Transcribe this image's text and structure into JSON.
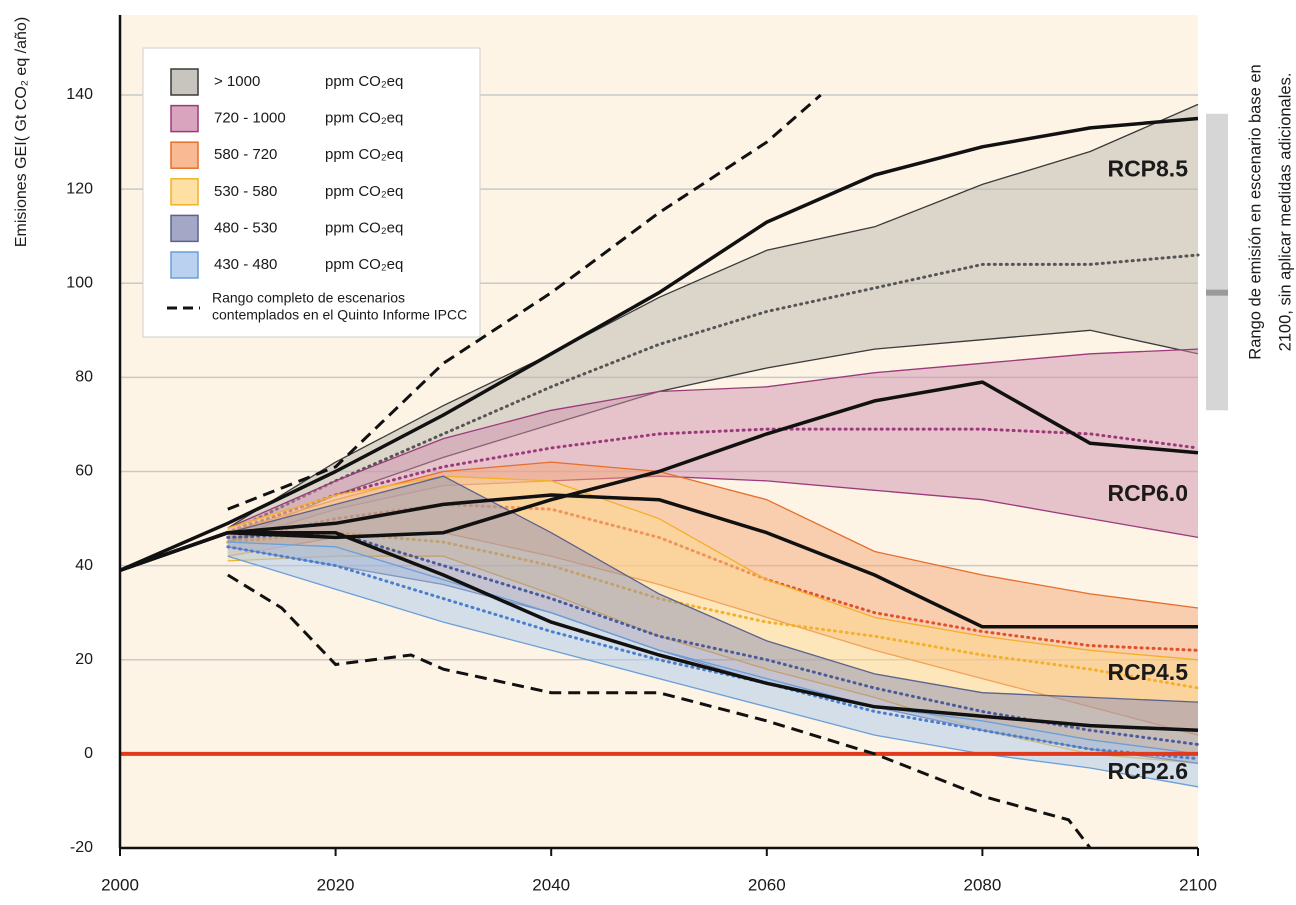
{
  "chart_data": {
    "type": "band",
    "y_label": "Emisiones GEI( Gt CO₂ eq /año)",
    "xlim": [
      2000,
      2100
    ],
    "xticks": [
      2000,
      2020,
      2040,
      2060,
      2080,
      2100
    ],
    "ylim": [
      -20,
      157
    ],
    "yticks": [
      -20,
      0,
      20,
      40,
      60,
      80,
      100,
      120,
      140
    ],
    "grid": true,
    "zero_line": {
      "value": 0,
      "color": "#e0391c"
    },
    "bands": [
      {
        "name": "> 1000",
        "unit": "ppm CO₂eq",
        "color": "#b9b6ae",
        "edge": "#3a3a3a",
        "median_color": "#555555",
        "x": [
          2010,
          2020,
          2030,
          2040,
          2050,
          2060,
          2070,
          2080,
          2090,
          2100
        ],
        "high": [
          48,
          62,
          74,
          85,
          97,
          107,
          112,
          121,
          128,
          138
        ],
        "low": [
          45,
          55,
          63,
          70,
          77,
          82,
          86,
          88,
          90,
          85
        ],
        "median": [
          47,
          58,
          68,
          78,
          87,
          94,
          99,
          104,
          104,
          106
        ]
      },
      {
        "name": "720 - 1000",
        "unit": "ppm CO₂eq",
        "color": "#cf8fae",
        "edge": "#9b3a7a",
        "median_color": "#9b3a7a",
        "x": [
          2010,
          2020,
          2030,
          2040,
          2050,
          2060,
          2070,
          2080,
          2090,
          2100
        ],
        "high": [
          48,
          58,
          67,
          73,
          77,
          78,
          81,
          83,
          85,
          86
        ],
        "low": [
          45,
          52,
          57,
          58,
          59,
          58,
          56,
          54,
          50,
          46
        ],
        "median": [
          47,
          55,
          61,
          65,
          68,
          69,
          69,
          69,
          68,
          65
        ]
      },
      {
        "name": "580 - 720",
        "unit": "ppm CO₂eq",
        "color": "#f6a878",
        "edge": "#e66e2a",
        "median_color": "#e0502a",
        "x": [
          2010,
          2020,
          2030,
          2040,
          2050,
          2060,
          2070,
          2080,
          2090,
          2100
        ],
        "high": [
          47,
          54,
          60,
          62,
          60,
          54,
          43,
          38,
          34,
          31
        ],
        "low": [
          42,
          46,
          47,
          42,
          36,
          29,
          22,
          16,
          10,
          4
        ],
        "median": [
          45,
          50,
          53,
          52,
          46,
          37,
          30,
          26,
          23,
          22
        ]
      },
      {
        "name": "530 - 580",
        "unit": "ppm CO₂eq",
        "color": "#fdd88b",
        "edge": "#f4b02a",
        "median_color": "#f4b02a",
        "x": [
          2010,
          2020,
          2030,
          2040,
          2050,
          2060,
          2070,
          2080,
          2090,
          2100
        ],
        "high": [
          48,
          55,
          59,
          58,
          50,
          37,
          29,
          25,
          22,
          20
        ],
        "low": [
          41,
          42,
          42,
          34,
          25,
          18,
          12,
          5,
          0,
          -2
        ],
        "median": [
          45,
          47,
          45,
          40,
          33,
          28,
          25,
          21,
          18,
          14
        ]
      },
      {
        "name": "480 - 530",
        "unit": "ppm CO₂eq",
        "color": "#8d92b8",
        "edge": "#5c628f",
        "median_color": "#4a5a9a",
        "x": [
          2010,
          2020,
          2030,
          2040,
          2050,
          2060,
          2070,
          2080,
          2090,
          2100
        ],
        "high": [
          47,
          53,
          59,
          47,
          34,
          24,
          17,
          13,
          12,
          11
        ],
        "low": [
          44,
          40,
          36,
          30,
          22,
          15,
          10,
          5,
          1,
          -2
        ],
        "median": [
          46,
          47,
          40,
          33,
          25,
          20,
          14,
          9,
          5,
          2
        ]
      },
      {
        "name": "430 - 480",
        "unit": "ppm CO₂eq",
        "color": "#a9c7ec",
        "edge": "#6a9fda",
        "median_color": "#4a7fcf",
        "x": [
          2010,
          2020,
          2030,
          2040,
          2050,
          2060,
          2070,
          2080,
          2090,
          2100
        ],
        "high": [
          45,
          44,
          37,
          30,
          22,
          16,
          10,
          7,
          3,
          0
        ],
        "low": [
          42,
          35,
          28,
          22,
          16,
          10,
          4,
          0,
          -3,
          -7
        ],
        "median": [
          44,
          40,
          33,
          26,
          20,
          15,
          9,
          5,
          1,
          -1
        ]
      }
    ],
    "lines": [
      {
        "name": "RCP8.5",
        "x": [
          2000,
          2010,
          2020,
          2030,
          2040,
          2050,
          2060,
          2070,
          2080,
          2090,
          2100
        ],
        "values": [
          39,
          49,
          60,
          72,
          85,
          98,
          113,
          123,
          129,
          133,
          135
        ]
      },
      {
        "name": "RCP6.0",
        "x": [
          2000,
          2010,
          2020,
          2030,
          2040,
          2050,
          2060,
          2070,
          2080,
          2090,
          2100
        ],
        "values": [
          39,
          47,
          46,
          47,
          54,
          60,
          68,
          75,
          79,
          66,
          64
        ]
      },
      {
        "name": "RCP4.5",
        "x": [
          2000,
          2010,
          2020,
          2030,
          2040,
          2050,
          2060,
          2070,
          2080,
          2090,
          2100
        ],
        "values": [
          39,
          47,
          49,
          53,
          55,
          54,
          47,
          38,
          27,
          27,
          27
        ]
      },
      {
        "name": "RCP2.6",
        "x": [
          2000,
          2010,
          2020,
          2030,
          2040,
          2050,
          2060,
          2070,
          2080,
          2090,
          2100
        ],
        "values": [
          39,
          47,
          47,
          38,
          28,
          21,
          15,
          10,
          8,
          6,
          5
        ]
      }
    ],
    "scenario_range": {
      "name_lines": [
        "Rango completo de escenarios",
        "contemplados en el Quinto Informe IPCC"
      ],
      "series": [
        {
          "x": [
            2010,
            2020,
            2030,
            2040,
            2050,
            2060,
            2065
          ],
          "values": [
            52,
            61,
            83,
            98,
            115,
            130,
            140
          ]
        },
        {
          "x": [
            2010,
            2015,
            2020,
            2027,
            2030,
            2040,
            2050,
            2060,
            2070,
            2080,
            2088,
            2090
          ],
          "values": [
            38,
            31,
            19,
            21,
            18,
            13,
            13,
            7,
            0,
            -9,
            -14,
            -20
          ]
        }
      ]
    },
    "baseline_range": {
      "label_lines": [
        "Rango de emisión en escenario base en",
        "2100, sin aplicar medidas adicionales."
      ],
      "low": 73,
      "high": 136,
      "median": 98
    }
  }
}
